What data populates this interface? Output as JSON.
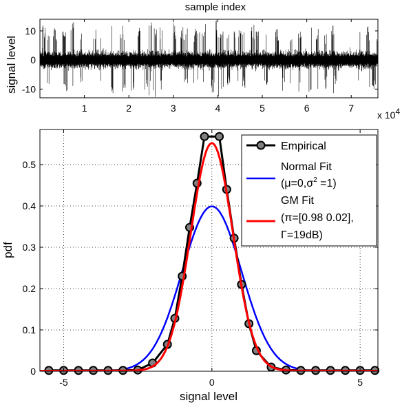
{
  "chart_data": [
    {
      "type": "line",
      "title": "sample index",
      "xlabel": "",
      "ylabel": "signal level",
      "xlim": [
        0,
        76000
      ],
      "ylim": [
        -13,
        14
      ],
      "x_ticks": [
        1,
        2,
        3,
        4,
        5,
        6,
        7
      ],
      "y_ticks": [
        -10,
        0,
        10
      ],
      "x_exponent_label": "x 10",
      "x_exponent_power": "4",
      "grid": false,
      "series": [
        {
          "description": "impulsive noise time series (dense Gaussian background with occasional large spikes)",
          "n_samples": 75000,
          "background_std": 1,
          "spike_level_range": [
            -13,
            14
          ]
        }
      ],
      "colors": {
        "trace": "#000000"
      }
    },
    {
      "type": "line",
      "xlabel": "signal level",
      "ylabel": "pdf",
      "xlim": [
        -5.8,
        5.6
      ],
      "ylim": [
        0,
        0.585
      ],
      "x_ticks": [
        -5,
        0,
        5
      ],
      "y_ticks": [
        0,
        0.1,
        0.2,
        0.3,
        0.4,
        0.5
      ],
      "grid": true,
      "legend_position": "top-right",
      "series": [
        {
          "name": "Empirical",
          "color": "#000000",
          "marker": "circle",
          "marker_fill": "#808080",
          "x": [
            -5.5,
            -5.0,
            -4.5,
            -4.0,
            -3.5,
            -3.0,
            -2.5,
            -2.0,
            -1.5,
            -1.25,
            -1.0,
            -0.75,
            -0.5,
            -0.25,
            0.25,
            0.5,
            0.75,
            1.0,
            1.25,
            1.5,
            2.0,
            2.5,
            3.0,
            3.5,
            4.0,
            4.5,
            5.0,
            5.5
          ],
          "y": [
            0.002,
            0.002,
            0.002,
            0.002,
            0.002,
            0.002,
            0.003,
            0.02,
            0.065,
            0.128,
            0.23,
            0.348,
            0.455,
            0.568,
            0.568,
            0.44,
            0.322,
            0.21,
            0.115,
            0.05,
            0.01,
            0.003,
            0.002,
            0.002,
            0.002,
            0.002,
            0.002,
            0.002
          ]
        },
        {
          "name_lines": [
            "Normal Fit",
            "(μ=0,σ",
            "2",
            " =1)"
          ],
          "color": "#0000ff",
          "curve": "normal pdf, mean 0, variance 1"
        },
        {
          "name_lines": [
            "GM Fit",
            "(π=[0.98 0.02],",
            "Γ=19dB)"
          ],
          "color": "#ff0000",
          "curve": "peak ≈ 0.56 at 0, narrow central lobe"
        }
      ]
    }
  ]
}
